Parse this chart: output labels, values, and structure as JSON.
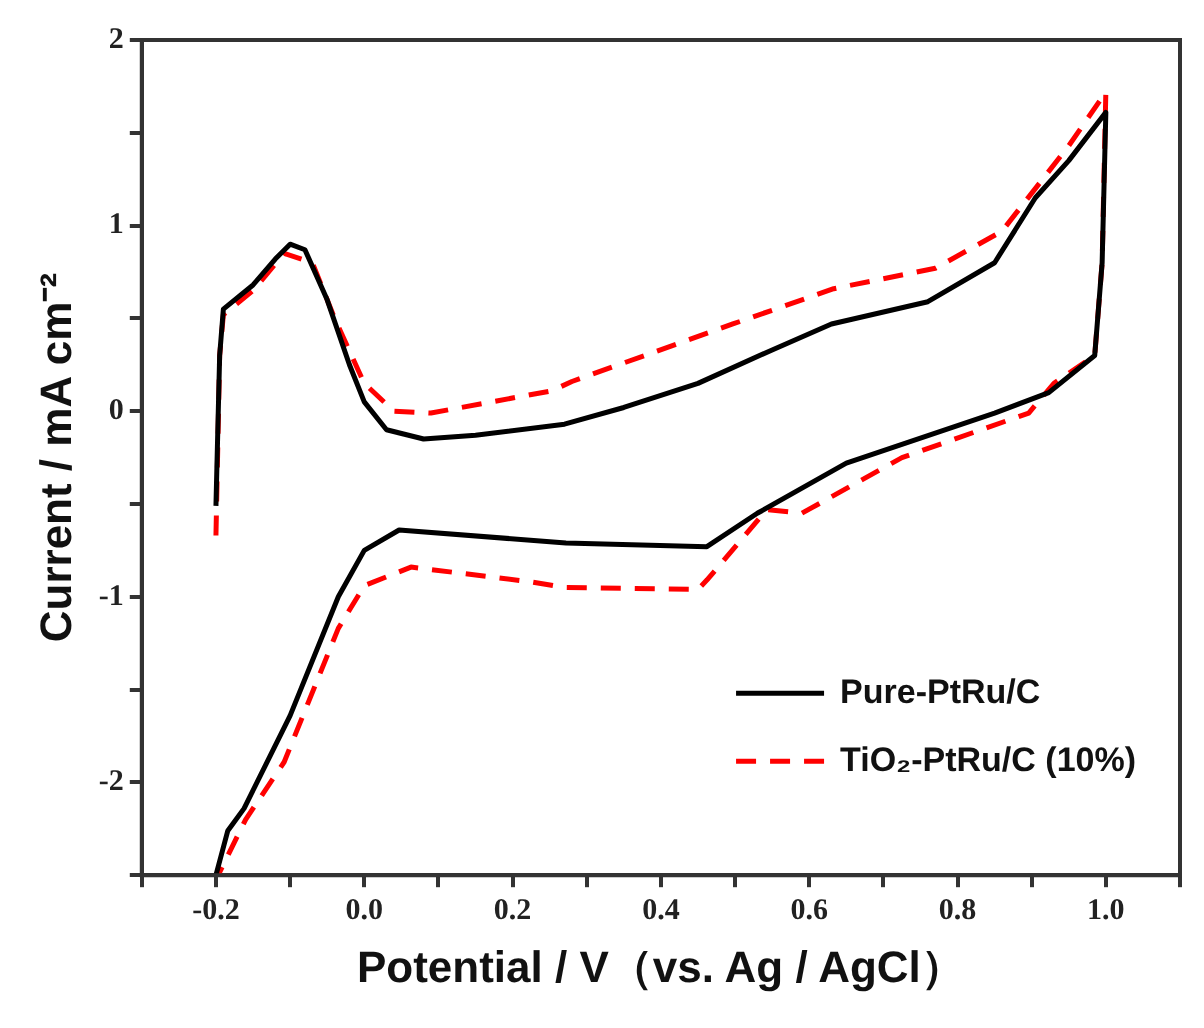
{
  "chart_data": {
    "type": "line",
    "xlabel": "Potential / V（vs. Ag / AgCl）",
    "ylabel": "Current / mA cm⁻²",
    "xlim": [
      -0.3,
      1.1
    ],
    "ylim": [
      -2.5,
      2
    ],
    "xticks": [
      {
        "value": -0.3,
        "label": null
      },
      -0.2,
      {
        "value": -0.1,
        "label": null
      },
      {
        "value": 0,
        "label": "0.0"
      },
      {
        "value": 0.1,
        "label": null
      },
      0.2,
      {
        "value": 0.3,
        "label": null
      },
      0.4,
      {
        "value": 0.5,
        "label": null
      },
      0.6,
      {
        "value": 0.7,
        "label": null
      },
      0.8,
      {
        "value": 0.9,
        "label": null
      },
      {
        "value": 1,
        "label": "1.0"
      },
      {
        "value": 1.1,
        "label": null
      }
    ],
    "yticks": [
      {
        "value": -2.5,
        "label": null
      },
      -2,
      {
        "value": -1.5,
        "label": null
      },
      -1,
      {
        "value": -0.5,
        "label": null
      },
      0,
      {
        "value": 0.5,
        "label": null
      },
      1,
      {
        "value": 1.5,
        "label": null
      },
      2
    ],
    "grid": false,
    "legend": "bottom right",
    "marker": "none",
    "series": [
      {
        "name": "Pure-PtRu/C",
        "color": "#000000",
        "line_style": "solid",
        "x": [
          -0.2,
          -0.195,
          -0.19,
          -0.15,
          -0.12,
          -0.1,
          -0.08,
          -0.05,
          -0.02,
          0.0,
          0.03,
          0.08,
          0.15,
          0.27,
          0.35,
          0.45,
          0.55,
          0.63,
          0.76,
          0.85,
          0.905,
          0.95,
          1.0,
          0.995,
          0.985,
          0.923,
          0.85,
          0.65,
          0.53,
          0.462,
          0.272,
          0.047,
          0.0,
          -0.035,
          -0.1,
          -0.162,
          -0.184,
          -0.2
        ],
        "values": [
          -0.51,
          0.3,
          0.55,
          0.68,
          0.82,
          0.9,
          0.87,
          0.6,
          0.25,
          0.05,
          -0.1,
          -0.15,
          -0.13,
          -0.07,
          0.02,
          0.15,
          0.33,
          0.47,
          0.59,
          0.8,
          1.15,
          1.35,
          1.61,
          0.8,
          0.3,
          0.1,
          -0.01,
          -0.28,
          -0.55,
          -0.73,
          -0.71,
          -0.64,
          -0.75,
          -1.0,
          -1.64,
          -2.14,
          -2.26,
          -2.5
        ]
      },
      {
        "name": "TiO₂-PtRu/C (10%)",
        "color": "#ff0000",
        "line_style": "dashed",
        "x": [
          -0.2,
          -0.195,
          -0.19,
          -0.15,
          -0.108,
          -0.07,
          -0.04,
          0.0,
          0.04,
          0.09,
          0.253,
          0.28,
          0.497,
          0.633,
          0.77,
          0.86,
          0.95,
          1.0,
          0.995,
          0.985,
          0.93,
          0.896,
          0.725,
          0.59,
          0.543,
          0.462,
          0.45,
          0.27,
          0.226,
          0.063,
          0.0,
          -0.035,
          -0.108,
          -0.16,
          -0.197
        ],
        "values": [
          -0.67,
          0.3,
          0.52,
          0.65,
          0.85,
          0.8,
          0.5,
          0.15,
          0.0,
          -0.01,
          0.11,
          0.16,
          0.47,
          0.66,
          0.77,
          0.97,
          1.43,
          1.72,
          0.8,
          0.3,
          0.15,
          -0.01,
          -0.25,
          -0.55,
          -0.53,
          -0.91,
          -0.96,
          -0.95,
          -0.92,
          -0.84,
          -0.94,
          -1.17,
          -1.89,
          -2.2,
          -2.5
        ]
      }
    ]
  }
}
